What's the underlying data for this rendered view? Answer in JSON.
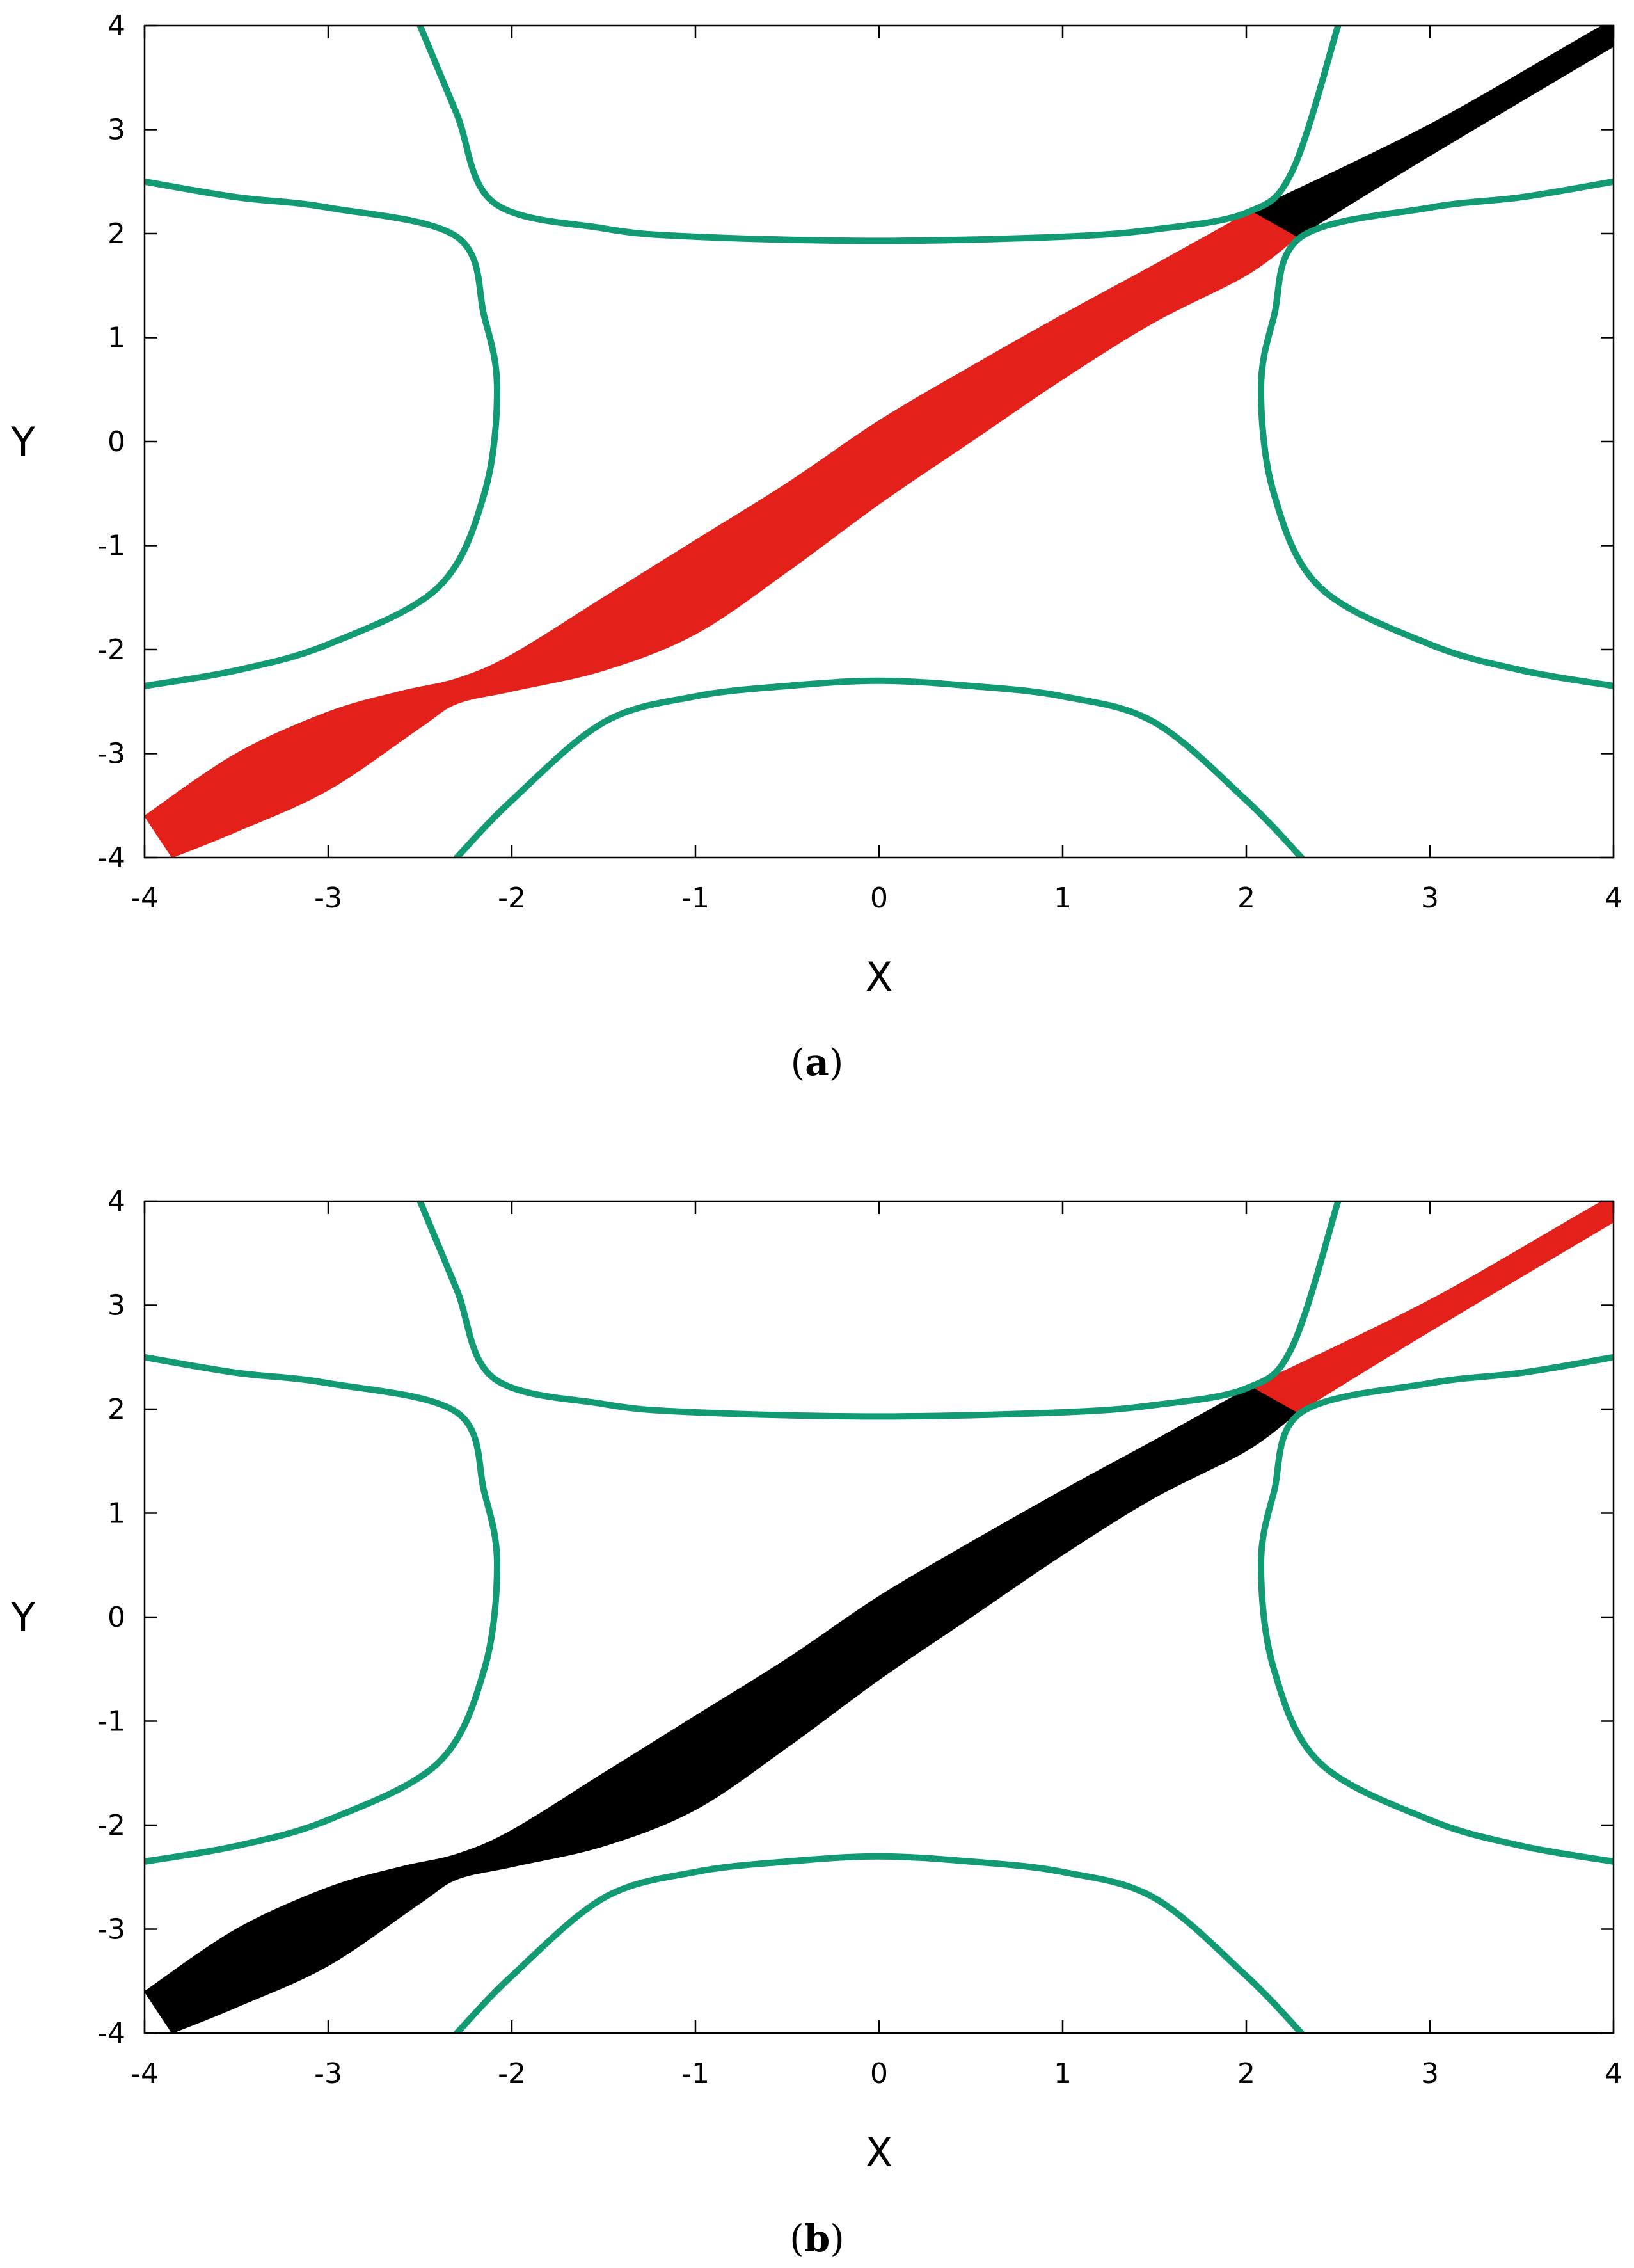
{
  "figure": {
    "panels": [
      {
        "caption_open": "(",
        "caption_letter": "a",
        "caption_close": ")"
      },
      {
        "caption_open": "(",
        "caption_letter": "b",
        "caption_close": ")"
      }
    ]
  },
  "chart_data": [
    {
      "type": "line",
      "panel": "a",
      "xlabel": "X",
      "ylabel": "Y",
      "xlim": [
        -4,
        4
      ],
      "ylim": [
        -4,
        4
      ],
      "xticks": [
        "-4",
        "-3",
        "-2",
        "-1",
        "0",
        "1",
        "2",
        "3",
        "4"
      ],
      "yticks": [
        "-4",
        "-3",
        "-2",
        "-1",
        "0",
        "1",
        "2",
        "3",
        "4"
      ],
      "grid": false,
      "colors": {
        "curve": "#119a74",
        "band_main": "#e3211a",
        "band_tail": "#000000"
      },
      "curves": [
        {
          "part": "top",
          "points": [
            [
              -2.5,
              4.0
            ],
            [
              -2.3,
              3.15
            ],
            [
              -2.1,
              2.3
            ],
            [
              -1.5,
              2.05
            ],
            [
              -1.0,
              1.97
            ],
            [
              0.0,
              1.93
            ],
            [
              1.0,
              1.97
            ],
            [
              1.5,
              2.04
            ],
            [
              2.0,
              2.2
            ],
            [
              2.25,
              2.6
            ],
            [
              2.5,
              4.0
            ]
          ]
        },
        {
          "part": "bottom",
          "points": [
            [
              -2.3,
              -4.0
            ],
            [
              -2.0,
              -3.45
            ],
            [
              -1.5,
              -2.7
            ],
            [
              -1.0,
              -2.45
            ],
            [
              -0.5,
              -2.35
            ],
            [
              0.0,
              -2.3
            ],
            [
              0.5,
              -2.35
            ],
            [
              1.0,
              -2.45
            ],
            [
              1.5,
              -2.7
            ],
            [
              2.0,
              -3.45
            ],
            [
              2.3,
              -4.0
            ]
          ]
        },
        {
          "part": "left",
          "points": [
            [
              -4.0,
              2.5
            ],
            [
              -3.5,
              2.35
            ],
            [
              -3.0,
              2.25
            ],
            [
              -2.3,
              1.97
            ],
            [
              -2.15,
              1.2
            ],
            [
              -2.08,
              0.5
            ],
            [
              -2.15,
              -0.5
            ],
            [
              -2.4,
              -1.4
            ],
            [
              -3.0,
              -1.95
            ],
            [
              -3.5,
              -2.2
            ],
            [
              -4.0,
              -2.35
            ]
          ]
        },
        {
          "part": "right",
          "points": [
            [
              4.0,
              2.5
            ],
            [
              3.5,
              2.35
            ],
            [
              3.0,
              2.25
            ],
            [
              2.3,
              1.97
            ],
            [
              2.15,
              1.2
            ],
            [
              2.08,
              0.5
            ],
            [
              2.15,
              -0.5
            ],
            [
              2.4,
              -1.4
            ],
            [
              3.0,
              -1.95
            ],
            [
              3.5,
              -2.2
            ],
            [
              4.0,
              -2.35
            ]
          ]
        }
      ],
      "bands": [
        {
          "role": "main",
          "upper": [
            [
              -4.0,
              -3.6
            ],
            [
              -3.5,
              -3.0
            ],
            [
              -3.0,
              -2.6
            ],
            [
              -2.6,
              -2.4
            ],
            [
              -2.3,
              -2.28
            ],
            [
              -2.0,
              -2.05
            ],
            [
              -1.5,
              -1.5
            ],
            [
              -1.0,
              -0.95
            ],
            [
              -0.5,
              -0.4
            ],
            [
              0.0,
              0.2
            ],
            [
              0.5,
              0.72
            ],
            [
              1.0,
              1.22
            ],
            [
              1.5,
              1.7
            ],
            [
              2.03,
              2.22
            ]
          ],
          "lower": [
            [
              -3.85,
              -4.0
            ],
            [
              -3.5,
              -3.75
            ],
            [
              -3.0,
              -3.35
            ],
            [
              -2.5,
              -2.75
            ],
            [
              -2.3,
              -2.52
            ],
            [
              -2.0,
              -2.4
            ],
            [
              -1.5,
              -2.2
            ],
            [
              -1.0,
              -1.85
            ],
            [
              -0.5,
              -1.25
            ],
            [
              0.0,
              -0.6
            ],
            [
              0.5,
              0.0
            ],
            [
              1.0,
              0.6
            ],
            [
              1.5,
              1.15
            ],
            [
              2.0,
              1.6
            ],
            [
              2.28,
              1.97
            ]
          ]
        },
        {
          "role": "tail",
          "upper": [
            [
              2.03,
              2.22
            ],
            [
              3.0,
              3.05
            ],
            [
              3.94,
              4.0
            ],
            [
              4.0,
              4.0
            ]
          ],
          "lower": [
            [
              2.28,
              1.97
            ],
            [
              3.0,
              2.75
            ],
            [
              4.0,
              3.8
            ]
          ]
        }
      ]
    },
    {
      "type": "line",
      "panel": "b",
      "xlabel": "X",
      "ylabel": "Y",
      "xlim": [
        -4,
        4
      ],
      "ylim": [
        -4,
        4
      ],
      "xticks": [
        "-4",
        "-3",
        "-2",
        "-1",
        "0",
        "1",
        "2",
        "3",
        "4"
      ],
      "yticks": [
        "-4",
        "-3",
        "-2",
        "-1",
        "0",
        "1",
        "2",
        "3",
        "4"
      ],
      "grid": false,
      "colors": {
        "curve": "#119a74",
        "band_main": "#000000",
        "band_tail": "#e3211a"
      },
      "curves": [
        {
          "part": "top",
          "points": [
            [
              -2.5,
              4.0
            ],
            [
              -2.3,
              3.15
            ],
            [
              -2.1,
              2.3
            ],
            [
              -1.5,
              2.05
            ],
            [
              -1.0,
              1.97
            ],
            [
              0.0,
              1.93
            ],
            [
              1.0,
              1.97
            ],
            [
              1.5,
              2.04
            ],
            [
              2.0,
              2.2
            ],
            [
              2.25,
              2.6
            ],
            [
              2.5,
              4.0
            ]
          ]
        },
        {
          "part": "bottom",
          "points": [
            [
              -2.3,
              -4.0
            ],
            [
              -2.0,
              -3.45
            ],
            [
              -1.5,
              -2.7
            ],
            [
              -1.0,
              -2.45
            ],
            [
              -0.5,
              -2.35
            ],
            [
              0.0,
              -2.3
            ],
            [
              0.5,
              -2.35
            ],
            [
              1.0,
              -2.45
            ],
            [
              1.5,
              -2.7
            ],
            [
              2.0,
              -3.45
            ],
            [
              2.3,
              -4.0
            ]
          ]
        },
        {
          "part": "left",
          "points": [
            [
              -4.0,
              2.5
            ],
            [
              -3.5,
              2.35
            ],
            [
              -3.0,
              2.25
            ],
            [
              -2.3,
              1.97
            ],
            [
              -2.15,
              1.2
            ],
            [
              -2.08,
              0.5
            ],
            [
              -2.15,
              -0.5
            ],
            [
              -2.4,
              -1.4
            ],
            [
              -3.0,
              -1.95
            ],
            [
              -3.5,
              -2.2
            ],
            [
              -4.0,
              -2.35
            ]
          ]
        },
        {
          "part": "right",
          "points": [
            [
              4.0,
              2.5
            ],
            [
              3.5,
              2.35
            ],
            [
              3.0,
              2.25
            ],
            [
              2.3,
              1.97
            ],
            [
              2.15,
              1.2
            ],
            [
              2.08,
              0.5
            ],
            [
              2.15,
              -0.5
            ],
            [
              2.4,
              -1.4
            ],
            [
              3.0,
              -1.95
            ],
            [
              3.5,
              -2.2
            ],
            [
              4.0,
              -2.35
            ]
          ]
        }
      ],
      "bands": [
        {
          "role": "main",
          "upper": [
            [
              -4.0,
              -3.6
            ],
            [
              -3.5,
              -3.0
            ],
            [
              -3.0,
              -2.6
            ],
            [
              -2.6,
              -2.4
            ],
            [
              -2.3,
              -2.28
            ],
            [
              -2.0,
              -2.05
            ],
            [
              -1.5,
              -1.5
            ],
            [
              -1.0,
              -0.95
            ],
            [
              -0.5,
              -0.4
            ],
            [
              0.0,
              0.2
            ],
            [
              0.5,
              0.72
            ],
            [
              1.0,
              1.22
            ],
            [
              1.5,
              1.7
            ],
            [
              2.03,
              2.22
            ]
          ],
          "lower": [
            [
              -3.85,
              -4.0
            ],
            [
              -3.5,
              -3.75
            ],
            [
              -3.0,
              -3.35
            ],
            [
              -2.5,
              -2.75
            ],
            [
              -2.3,
              -2.52
            ],
            [
              -2.0,
              -2.4
            ],
            [
              -1.5,
              -2.2
            ],
            [
              -1.0,
              -1.85
            ],
            [
              -0.5,
              -1.25
            ],
            [
              0.0,
              -0.6
            ],
            [
              0.5,
              0.0
            ],
            [
              1.0,
              0.6
            ],
            [
              1.5,
              1.15
            ],
            [
              2.0,
              1.6
            ],
            [
              2.28,
              1.97
            ]
          ]
        },
        {
          "role": "tail",
          "upper": [
            [
              2.03,
              2.22
            ],
            [
              3.0,
              3.05
            ],
            [
              3.94,
              4.0
            ],
            [
              4.0,
              4.0
            ]
          ],
          "lower": [
            [
              2.28,
              1.97
            ],
            [
              3.0,
              2.75
            ],
            [
              4.0,
              3.8
            ]
          ]
        }
      ]
    }
  ]
}
